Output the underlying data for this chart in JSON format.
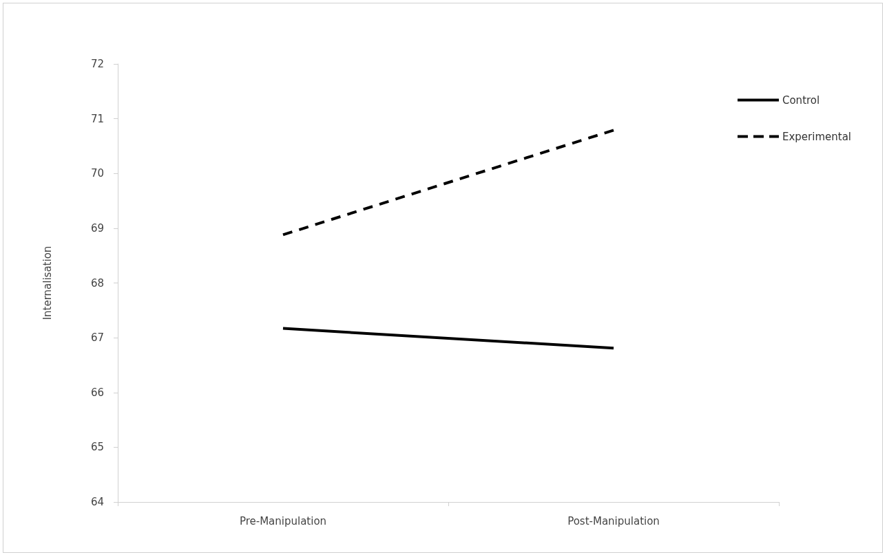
{
  "chart_data": {
    "type": "line",
    "ylabel": "Internalisation",
    "categories": [
      "Pre-Manipulation",
      "Post-Manipulation"
    ],
    "ylim": [
      64,
      72
    ],
    "yticks": [
      64,
      65,
      66,
      67,
      68,
      69,
      70,
      71,
      72
    ],
    "grid": false,
    "legend": "top right",
    "marker": "none",
    "series": [
      {
        "name": "Control",
        "color": "#000000",
        "line_style": "solid",
        "values": [
          67.17,
          66.81
        ]
      },
      {
        "name": "Experimental",
        "color": "#000000",
        "line_style": "dashed",
        "values": [
          68.88,
          70.79
        ]
      }
    ]
  }
}
